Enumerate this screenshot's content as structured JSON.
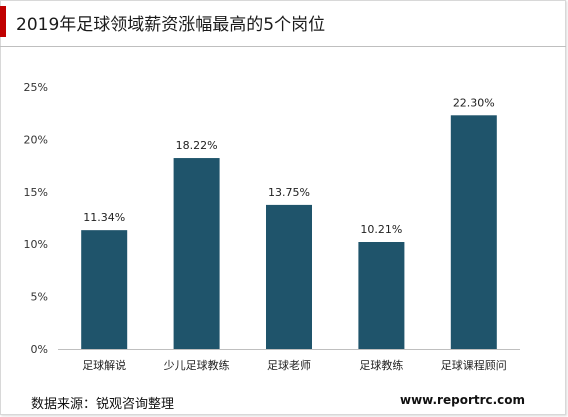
{
  "title": "2019年足球领域薪资涨幅最高的5个岗位",
  "source": "数据来源：锐观咨询整理",
  "website": "www.reportrc.com",
  "colors": {
    "bar": "#1f546b",
    "accent": "#c00000"
  },
  "chart_data": {
    "type": "bar",
    "categories": [
      "足球解说",
      "少儿足球教练",
      "足球老师",
      "足球教练",
      "足球课程顾问"
    ],
    "values": [
      11.34,
      18.22,
      13.75,
      10.21,
      22.3
    ],
    "data_labels": [
      "11.34%",
      "18.22%",
      "13.75%",
      "10.21%",
      "22.30%"
    ],
    "ylim": [
      0,
      25
    ],
    "yticks": [
      0,
      5,
      10,
      15,
      20,
      25
    ],
    "ytick_labels": [
      "0%",
      "5%",
      "10%",
      "15%",
      "20%",
      "25%"
    ],
    "grid": false,
    "legend": "none"
  }
}
